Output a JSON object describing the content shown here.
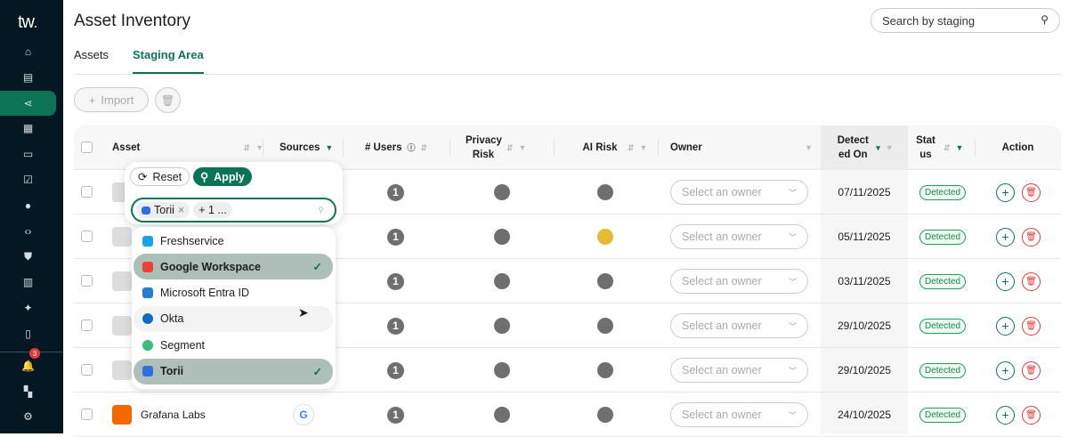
{
  "sidebar": {
    "logo": "tw",
    "badge_count": "3",
    "items": [
      "home-icon",
      "document-check-icon",
      "share-icon",
      "building-icon",
      "id-card-icon",
      "checklist-icon",
      "user-shield-icon",
      "code-icon",
      "shield-check-icon",
      "report-icon",
      "sparkles-icon",
      "clipboard-icon"
    ],
    "bottom": [
      "bell-icon",
      "hierarchy-icon",
      "gear-icon"
    ],
    "active_index": 2
  },
  "header": {
    "title": "Asset Inventory",
    "search_placeholder": "Search by staging"
  },
  "tabs": [
    {
      "label": "Assets"
    },
    {
      "label": "Staging Area",
      "active": true
    }
  ],
  "toolbar": {
    "import_label": "Import"
  },
  "columns": {
    "asset": "Asset",
    "sources": "Sources",
    "users": "# Users",
    "privacy": "Privacy Risk",
    "ai": "AI Risk",
    "owner": "Owner",
    "detected": "Detect ed On",
    "status": "Stat us",
    "action": "Action"
  },
  "rows": [
    {
      "asset": "",
      "users": "1",
      "privacy": "#6f6f6f",
      "ai": "#6f6f6f",
      "owner": "Select an owner",
      "detected": "07/11/2025",
      "status": "Detected"
    },
    {
      "asset": "",
      "users": "1",
      "privacy": "#6f6f6f",
      "ai": "#e5bc2f",
      "owner": "Select an owner",
      "detected": "05/11/2025",
      "status": "Detected"
    },
    {
      "asset": "",
      "users": "1",
      "privacy": "#6f6f6f",
      "ai": "#6f6f6f",
      "owner": "Select an owner",
      "detected": "03/11/2025",
      "status": "Detected"
    },
    {
      "asset": "",
      "users": "1",
      "privacy": "#6f6f6f",
      "ai": "#6f6f6f",
      "owner": "Select an owner",
      "detected": "29/10/2025",
      "status": "Detected"
    },
    {
      "asset": "",
      "users": "1",
      "privacy": "#6f6f6f",
      "ai": "#6f6f6f",
      "owner": "Select an owner",
      "detected": "29/10/2025",
      "status": "Detected"
    },
    {
      "asset": "Grafana Labs",
      "users": "1",
      "privacy": "#6f6f6f",
      "ai": "#6f6f6f",
      "owner": "Select an owner",
      "detected": "24/10/2025",
      "status": "Detected"
    }
  ],
  "filter": {
    "reset_label": "Reset",
    "apply_label": "Apply",
    "chip": "Torii",
    "more_chip": "+ 1 ...",
    "options": [
      {
        "label": "Freshservice",
        "selected": false,
        "color": "#1aa3e8"
      },
      {
        "label": "Google Workspace",
        "selected": true,
        "color": "#ea4335"
      },
      {
        "label": "Microsoft Entra ID",
        "selected": false,
        "color": "#2a7bd4"
      },
      {
        "label": "Okta",
        "selected": false,
        "color": "#0a6fc2"
      },
      {
        "label": "Segment",
        "selected": false,
        "color": "#3dba7e"
      },
      {
        "label": "Torii",
        "selected": true,
        "color": "#2f6fe0"
      }
    ]
  },
  "colors": {
    "accent": "#0d7356",
    "sidebar": "#041722",
    "danger": "#e53935"
  }
}
